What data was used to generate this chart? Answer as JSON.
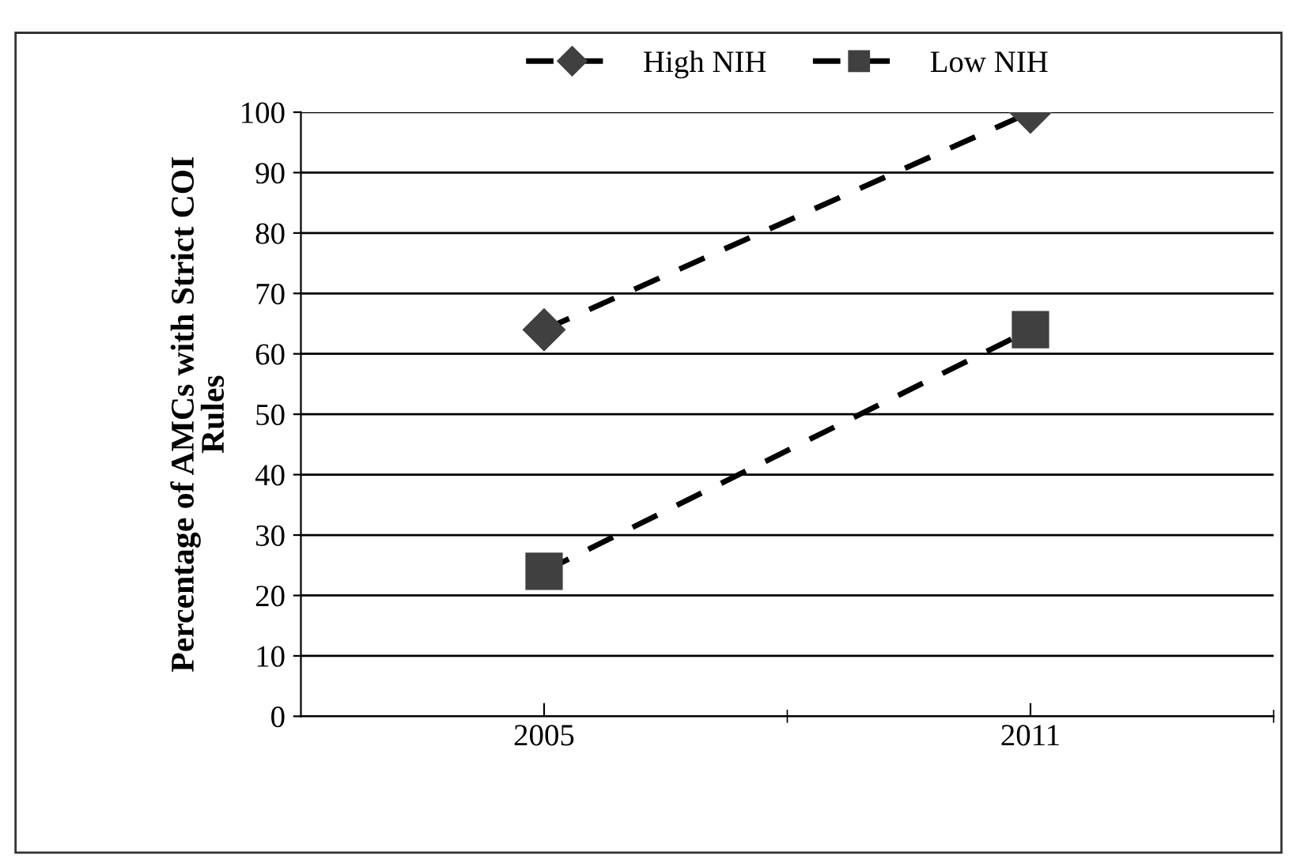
{
  "chart_data": {
    "type": "line",
    "ylabel": "Percentage of AMCs with Strict COI\nRules",
    "categories": [
      "2005",
      "2011"
    ],
    "series": [
      {
        "name": "High NIH",
        "color": "#404040",
        "marker": "diamond",
        "values": [
          64,
          100
        ]
      },
      {
        "name": "Low NIH",
        "color": "#404040",
        "marker": "square",
        "values": [
          24,
          64
        ]
      }
    ],
    "ylim": [
      0,
      100
    ],
    "yticks": [
      0,
      10,
      20,
      30,
      40,
      50,
      60,
      70,
      80,
      90,
      100
    ],
    "grid": "y",
    "legend": "top",
    "line_style": "dashed"
  }
}
